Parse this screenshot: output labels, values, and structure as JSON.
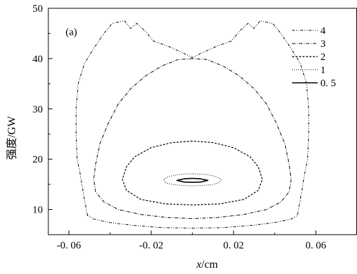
{
  "chart_data": {
    "type": "contour",
    "panel_label": "(a)",
    "xlabel_var": "x",
    "xlabel_unit": "/cm",
    "ylabel": "强度/GW",
    "xlim": [
      -0.07,
      0.08
    ],
    "ylim": [
      5,
      50
    ],
    "x_ticks": [
      {
        "value": -0.06,
        "label": "-0. 06"
      },
      {
        "value": -0.02,
        "label": "-0. 02"
      },
      {
        "value": 0.02,
        "label": "0. 02"
      },
      {
        "value": 0.06,
        "label": "0. 06"
      }
    ],
    "y_ticks": [
      {
        "value": 10,
        "label": "10"
      },
      {
        "value": 20,
        "label": "20"
      },
      {
        "value": 30,
        "label": "30"
      },
      {
        "value": 40,
        "label": "40"
      },
      {
        "value": 50,
        "label": "50"
      }
    ],
    "series": [
      {
        "name": "4",
        "dash": "dashdotdot",
        "points": [
          [
            -0.051,
            8.8
          ],
          [
            -0.0515,
            10.0
          ],
          [
            -0.0525,
            12.0
          ],
          [
            -0.0545,
            17.0
          ],
          [
            -0.056,
            20.0
          ],
          [
            -0.0565,
            25.0
          ],
          [
            -0.0565,
            30.0
          ],
          [
            -0.0555,
            35.0
          ],
          [
            -0.0525,
            39.0
          ],
          [
            -0.048,
            42.0
          ],
          [
            -0.043,
            45.0
          ],
          [
            -0.039,
            47.0
          ],
          [
            -0.033,
            47.5
          ],
          [
            -0.03,
            46.0
          ],
          [
            -0.027,
            47.0
          ],
          [
            -0.023,
            45.5
          ],
          [
            -0.019,
            43.5
          ],
          [
            -0.012,
            42.5
          ],
          [
            -0.005,
            41.2
          ],
          [
            0.0,
            40.2
          ],
          [
            0.005,
            41.2
          ],
          [
            0.012,
            42.5
          ],
          [
            0.019,
            43.5
          ],
          [
            0.023,
            45.5
          ],
          [
            0.027,
            47.0
          ],
          [
            0.03,
            46.0
          ],
          [
            0.033,
            47.5
          ],
          [
            0.039,
            47.0
          ],
          [
            0.043,
            45.0
          ],
          [
            0.048,
            42.0
          ],
          [
            0.0525,
            39.0
          ],
          [
            0.0555,
            35.0
          ],
          [
            0.0565,
            30.0
          ],
          [
            0.0565,
            25.0
          ],
          [
            0.056,
            20.0
          ],
          [
            0.0545,
            17.0
          ],
          [
            0.0525,
            12.0
          ],
          [
            0.0515,
            10.0
          ],
          [
            0.051,
            8.8
          ],
          [
            0.048,
            8.1
          ],
          [
            0.04,
            7.4
          ],
          [
            0.03,
            6.9
          ],
          [
            0.015,
            6.4
          ],
          [
            0.0,
            6.3
          ],
          [
            -0.015,
            6.4
          ],
          [
            -0.03,
            6.9
          ],
          [
            -0.04,
            7.4
          ],
          [
            -0.048,
            8.1
          ],
          [
            -0.051,
            8.8
          ]
        ]
      },
      {
        "name": "3",
        "dash": "dashdot",
        "points": [
          [
            0.0,
            40.0
          ],
          [
            -0.007,
            39.8
          ],
          [
            -0.015,
            38.5
          ],
          [
            -0.023,
            36.5
          ],
          [
            -0.03,
            34.0
          ],
          [
            -0.036,
            31.0
          ],
          [
            -0.041,
            27.0
          ],
          [
            -0.045,
            23.0
          ],
          [
            -0.047,
            19.0
          ],
          [
            -0.048,
            16.0
          ],
          [
            -0.047,
            13.5
          ],
          [
            -0.043,
            11.5
          ],
          [
            -0.036,
            10.0
          ],
          [
            -0.025,
            9.0
          ],
          [
            -0.012,
            8.4
          ],
          [
            0.0,
            8.2
          ],
          [
            0.012,
            8.4
          ],
          [
            0.025,
            9.0
          ],
          [
            0.036,
            10.0
          ],
          [
            0.043,
            11.5
          ],
          [
            0.047,
            13.5
          ],
          [
            0.048,
            16.0
          ],
          [
            0.047,
            19.0
          ],
          [
            0.045,
            23.0
          ],
          [
            0.041,
            27.0
          ],
          [
            0.036,
            31.0
          ],
          [
            0.03,
            34.0
          ],
          [
            0.023,
            36.5
          ],
          [
            0.015,
            38.5
          ],
          [
            0.007,
            39.8
          ],
          [
            0.0,
            40.0
          ]
        ]
      },
      {
        "name": "2",
        "dash": "dash",
        "points": [
          [
            0.0,
            23.6
          ],
          [
            -0.01,
            23.3
          ],
          [
            -0.02,
            22.3
          ],
          [
            -0.028,
            20.5
          ],
          [
            -0.032,
            18.5
          ],
          [
            -0.034,
            16.0
          ],
          [
            -0.032,
            13.8
          ],
          [
            -0.025,
            12.0
          ],
          [
            -0.013,
            11.1
          ],
          [
            0.0,
            10.9
          ],
          [
            0.013,
            11.1
          ],
          [
            0.025,
            12.0
          ],
          [
            0.032,
            13.8
          ],
          [
            0.034,
            16.0
          ],
          [
            0.032,
            18.5
          ],
          [
            0.028,
            20.5
          ],
          [
            0.02,
            22.3
          ],
          [
            0.01,
            23.3
          ],
          [
            0.0,
            23.6
          ]
        ]
      },
      {
        "name": "1",
        "dash": "dot",
        "points": [
          [
            0.0,
            17.1
          ],
          [
            -0.006,
            17.0
          ],
          [
            -0.011,
            16.6
          ],
          [
            -0.014,
            16.0
          ],
          [
            -0.013,
            15.3
          ],
          [
            -0.009,
            14.9
          ],
          [
            0.0,
            14.7
          ],
          [
            0.009,
            14.9
          ],
          [
            0.013,
            15.3
          ],
          [
            0.014,
            16.0
          ],
          [
            0.011,
            16.6
          ],
          [
            0.006,
            17.0
          ],
          [
            0.0,
            17.1
          ]
        ]
      },
      {
        "name": "0. 5",
        "dash": "solid",
        "points": [
          [
            0.0,
            16.2
          ],
          [
            -0.004,
            16.1
          ],
          [
            -0.0075,
            15.8
          ],
          [
            -0.004,
            15.45
          ],
          [
            0.0,
            15.4
          ],
          [
            0.004,
            15.45
          ],
          [
            0.0075,
            15.8
          ],
          [
            0.004,
            16.1
          ],
          [
            0.0,
            16.2
          ]
        ]
      }
    ]
  }
}
